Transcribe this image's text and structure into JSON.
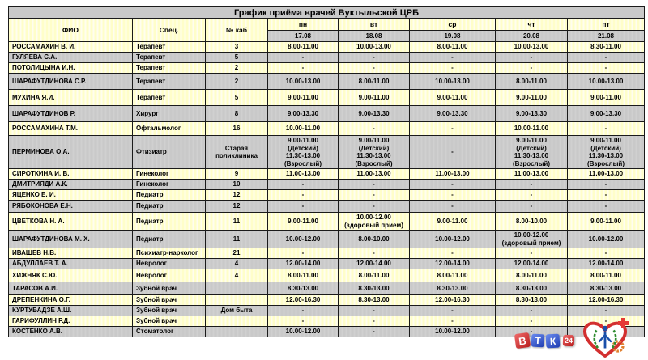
{
  "title": "График приёма врачей Вуктыльской ЦРБ",
  "table": {
    "headers": {
      "fio": "ФИО",
      "spec": "Спец.",
      "cab": "№ каб"
    },
    "days": [
      {
        "label": "пн",
        "date": "17.08"
      },
      {
        "label": "вт",
        "date": "18.08"
      },
      {
        "label": "ср",
        "date": "19.08"
      },
      {
        "label": "чт",
        "date": "20.08"
      },
      {
        "label": "пт",
        "date": "21.08"
      }
    ],
    "rows": [
      {
        "fio": "РОССАМАХИН В. И.",
        "spec": "Терапевт",
        "cab": "3",
        "schedule": [
          "8.00-11.00",
          "10.00-13.00",
          "8.00-11.00",
          "10.00-13.00",
          "8.30-11.00"
        ]
      },
      {
        "fio": "ГУЛЯЕВА С.А.",
        "spec": "Терапевт",
        "cab": "5",
        "schedule": [
          "-",
          "-",
          "-",
          "-",
          "-"
        ]
      },
      {
        "fio": "ПОТОЛИЦЫНА И.Н.",
        "spec": "Терапевт",
        "cab": "2",
        "schedule": [
          "-",
          "-",
          "-",
          "-",
          "-"
        ]
      },
      {
        "fio": "ШАРАФУТДИНОВА С.Р.",
        "spec": "Терапевт",
        "cab": "2",
        "schedule": [
          "10.00-13.00",
          "8.00-11.00",
          "10.00-13.00",
          "8.00-11.00",
          "10.00-13.00"
        ]
      },
      {
        "fio": "МУХИНА Я.И.",
        "spec": "Терапевт",
        "cab": "5",
        "schedule": [
          "9.00-11.00",
          "9.00-11.00",
          "9.00-11.00",
          "9.00-11.00",
          "9.00-11.00"
        ]
      },
      {
        "fio": "ШАРАФУТДИНОВ Р.",
        "spec": "Хирург",
        "cab": "8",
        "schedule": [
          "9.00-13.30",
          "9.00-13.30",
          "9.00-13.30",
          "9.00-13.30",
          "9.00-13.30"
        ]
      },
      {
        "fio": "РОССАМАХИНА Т.М.",
        "spec": "Офтальмолог",
        "cab": "16",
        "schedule": [
          "10.00-11.00",
          "-",
          "-",
          "10.00-11.00",
          "-"
        ]
      },
      {
        "fio": "ПЕРМИНОВА О.А.",
        "spec": "Фтизиатр",
        "cab": "Старая\nполиклиника",
        "schedule": [
          "9.00-11.00\n(Детский)\n11.30-13.00\n(Взрослый)",
          "9.00-11.00\n(Детский)\n11.30-13.00\n(Взрослый)",
          "-",
          "9.00-11.00\n(Детский)\n11.30-13.00\n(Взрослый)",
          "9.00-11.00\n(Детский)\n11.30-13.00\n(Взрослый)"
        ]
      },
      {
        "fio": "СИРОТКИНА И. В.",
        "spec": "Гинеколог",
        "cab": "9",
        "schedule": [
          "11.00-13.00",
          "11.00-13.00",
          "11.00-13.00",
          "11.00-13.00",
          "11.00-13.00"
        ]
      },
      {
        "fio": "ДМИТРИЯДИ А.К.",
        "spec": "Гинеколог",
        "cab": "10",
        "schedule": [
          "-",
          "-",
          "-",
          "-",
          "-"
        ]
      },
      {
        "fio": "ЯЦЕНКО Е. И.",
        "spec": "Педиатр",
        "cab": "12",
        "schedule": [
          "-",
          "-",
          "-",
          "-",
          "-"
        ]
      },
      {
        "fio": "РЯБОКОНОВА Е.Н.",
        "spec": "Педиатр",
        "cab": "12",
        "schedule": [
          "-",
          "-",
          "-",
          "-",
          "-"
        ]
      },
      {
        "fio": "ЦВЕТКОВА Н. А.",
        "spec": "Педиатр",
        "cab": "11",
        "schedule": [
          "9.00-11.00",
          "10.00-12.00\n(здоровый прием)",
          "9.00-11.00",
          "8.00-10.00",
          "9.00-11.00"
        ]
      },
      {
        "fio": "ШАРАФУТДИНОВА М. Х.",
        "spec": "Педиатр",
        "cab": "11",
        "schedule": [
          "10.00-12.00",
          "8.00-10.00",
          "10.00-12.00",
          "10.00-12.00\n(здоровый прием)",
          "10.00-12.00"
        ]
      },
      {
        "fio": "ИВАШЕВ Н.В.",
        "spec": "Психиатр-нарколог",
        "cab": "21",
        "schedule": [
          "-",
          "-",
          "-",
          "-",
          "-"
        ]
      },
      {
        "fio": "АБДУЛЛАЕВ Т. А.",
        "spec": "Невролог",
        "cab": "4",
        "schedule": [
          "12.00-14.00",
          "12.00-14.00",
          "12.00-14.00",
          "12.00-14.00",
          "12.00-14.00"
        ]
      },
      {
        "fio": "ХИЖНЯК С.Ю.",
        "spec": "Невролог",
        "cab": "4",
        "schedule": [
          "8.00-11.00",
          "8.00-11.00",
          "8.00-11.00",
          "8.00-11.00",
          "8.00-11.00"
        ]
      },
      {
        "fio": "ТАРАСОВ А.И.",
        "spec": "Зубной врач",
        "cab": "",
        "schedule": [
          "8.30-13.00",
          "8.30-13.00",
          "8.30-13.00",
          "8.30-13.00",
          "8.30-13.00"
        ]
      },
      {
        "fio": "ДРЕПЕНКИНА О.Г.",
        "spec": "Зубной врач",
        "cab": "",
        "schedule": [
          "12.00-16.30",
          "8.30-13.00",
          "12.00-16.30",
          "8.30-13.00",
          "12.00-16.30"
        ]
      },
      {
        "fio": "КУРТУБАДЗЕ А.Ш.",
        "spec": "Зубной врач",
        "cab": "Дом быта",
        "schedule": [
          "-",
          "-",
          "-",
          "-",
          "-"
        ]
      },
      {
        "fio": "ГАРИФУЛЛИН Р.Д.",
        "spec": "Зубной врач",
        "cab": "",
        "schedule": [
          "-",
          "-",
          "-",
          "-",
          "-"
        ]
      },
      {
        "fio": "КОСТЕНКО А.В.",
        "spec": "Стоматолог",
        "cab": "",
        "schedule": [
          "10.00-12.00",
          "-",
          "10.00-12.00",
          "-",
          "10.00-12.00"
        ]
      }
    ]
  },
  "footer": {
    "vtk": {
      "tiles": [
        {
          "t": "В",
          "c": "r"
        },
        {
          "t": "Т",
          "c": "b"
        },
        {
          "t": "К",
          "c": "b"
        },
        {
          "t": "24",
          "c": "r"
        }
      ]
    }
  },
  "colors": {
    "row_yellow": "#FFFEC9",
    "row_gray": "#C9C9C9",
    "border": "#1A1A1A",
    "vtk_red": "#B71C1C",
    "vtk_blue": "#1F3CB0",
    "heart_red": "#D32F2F",
    "wreath_green": "#2E8B2E",
    "figure_blue": "#1A4FAA",
    "gear_orange": "#E08030"
  }
}
